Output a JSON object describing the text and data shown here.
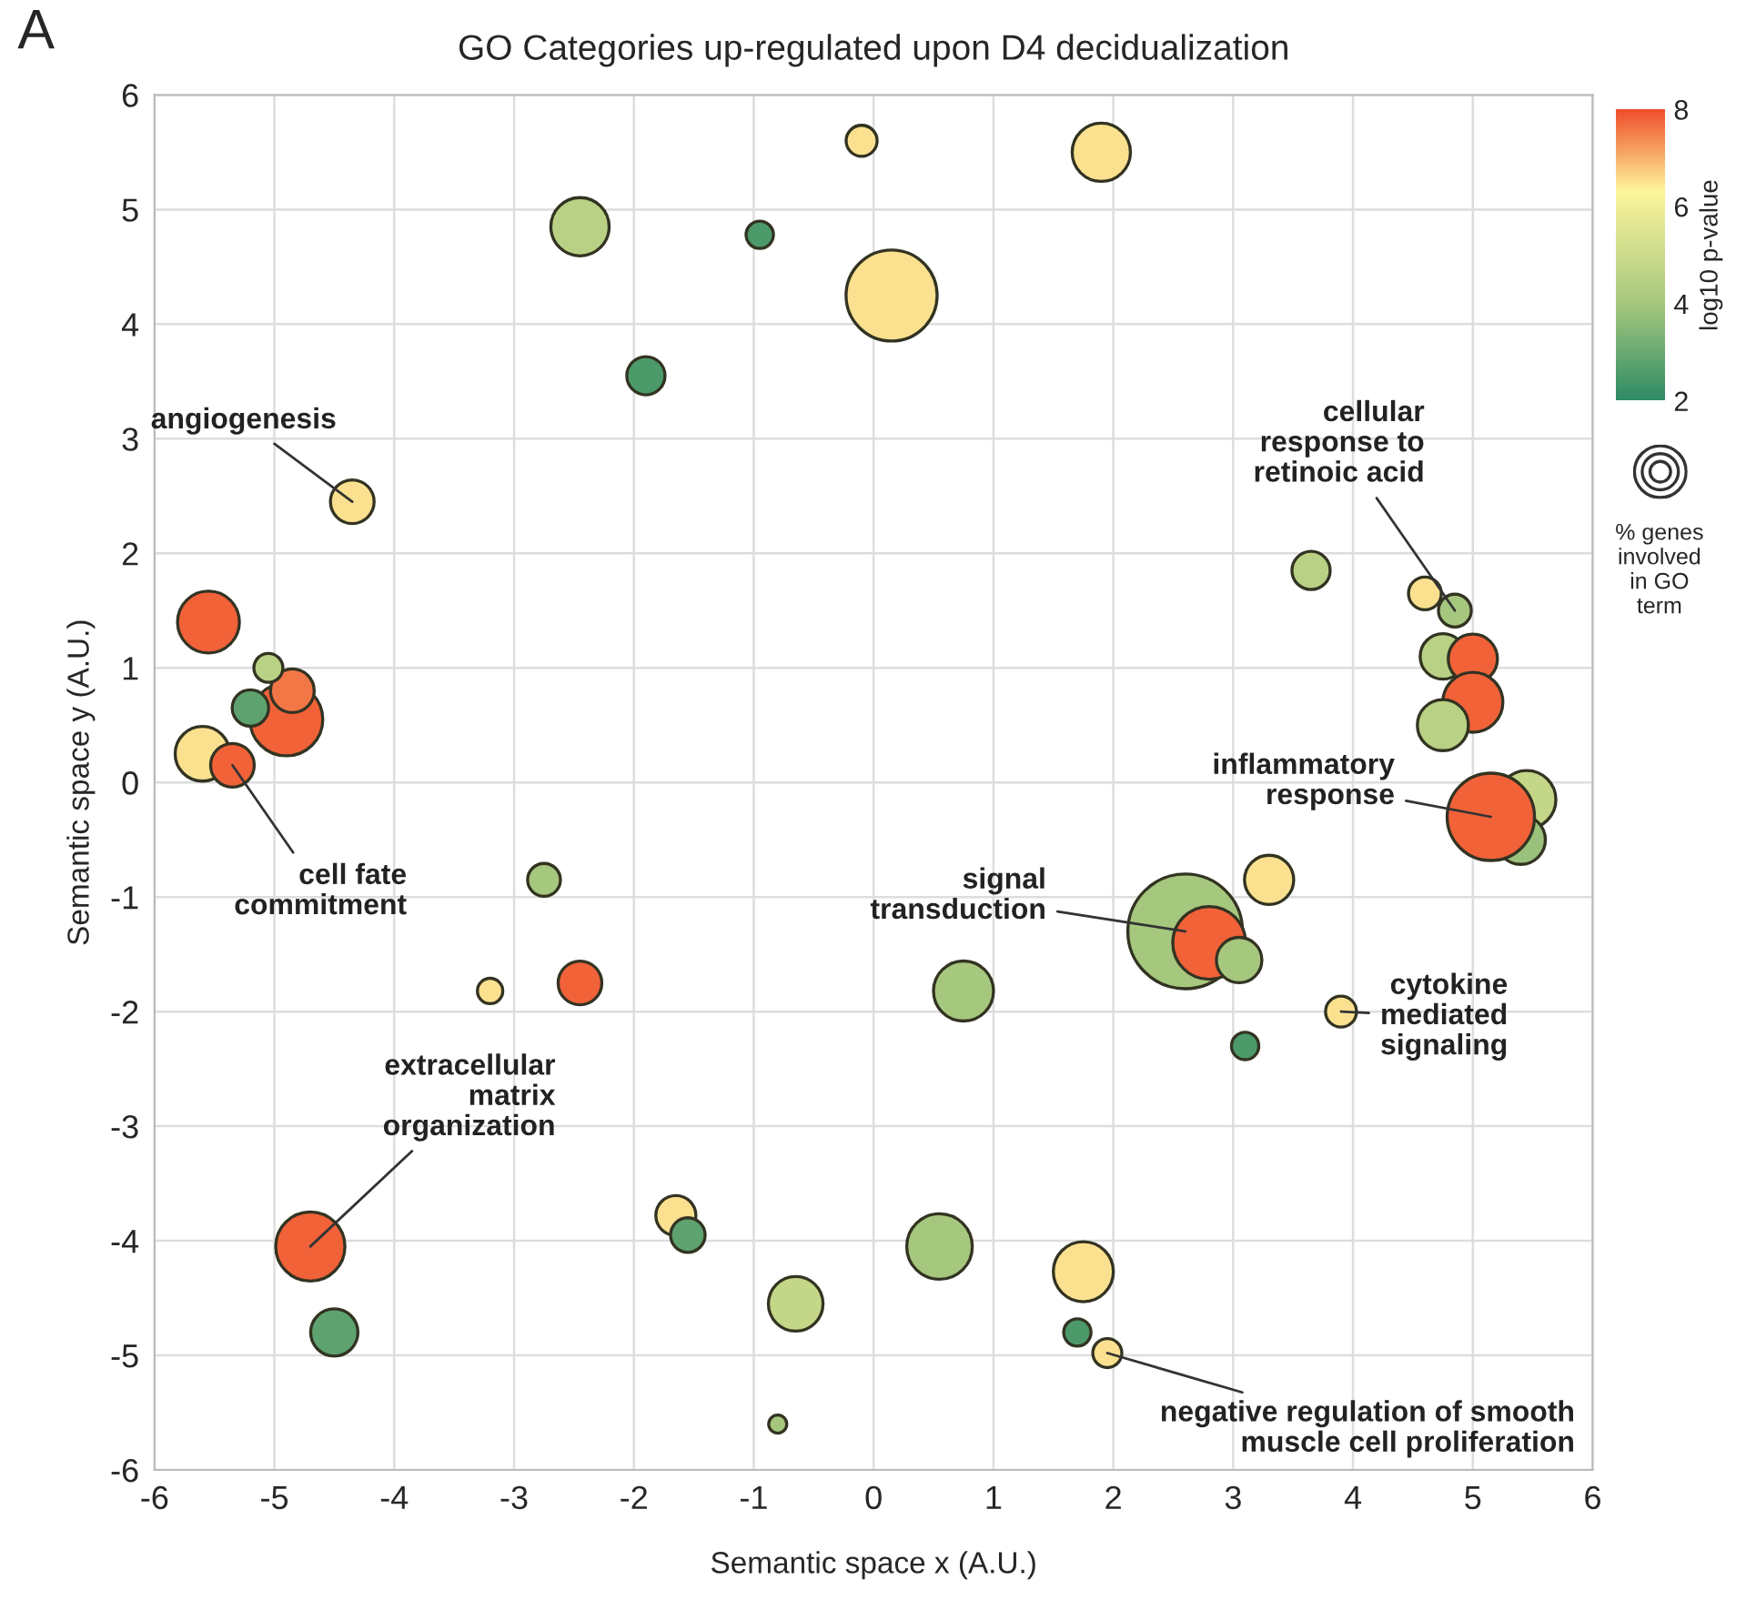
{
  "chart_data": {
    "type": "bubble",
    "title": "GO Categories up-regulated upon D4 decidualization",
    "xlabel": "Semantic space x (A.U.)",
    "ylabel": "Semantic space y (A.U.)",
    "clabel": "log10 p-value",
    "xlim": [
      -6,
      6
    ],
    "ylim": [
      -6,
      6
    ],
    "xticks": [
      -6,
      -5,
      -4,
      -3,
      -2,
      -1,
      0,
      1,
      2,
      3,
      4,
      5,
      6
    ],
    "yticks": [
      -6,
      -5,
      -4,
      -3,
      -2,
      -1,
      0,
      1,
      2,
      3,
      4,
      5,
      6
    ],
    "clim": [
      2,
      8
    ],
    "cticks": [
      2,
      4,
      6,
      8
    ],
    "grid": true,
    "marker": "circle",
    "x": [
      -0.1,
      1.9,
      -2.45,
      -0.95,
      0.15,
      -1.9,
      -4.35,
      -5.55,
      -4.9,
      -4.85,
      -5.05,
      -5.2,
      -5.6,
      -5.35,
      -2.75,
      -3.2,
      -2.45,
      -4.7,
      -4.5,
      -1.65,
      -1.55,
      -0.65,
      -0.8,
      0.75,
      0.55,
      1.75,
      1.7,
      1.95,
      2.6,
      2.8,
      3.05,
      3.3,
      3.1,
      3.9,
      3.65,
      4.6,
      4.85,
      4.75,
      5.0,
      5.0,
      4.75,
      5.45,
      5.4,
      5.15
    ],
    "values": [
      5.6,
      5.5,
      4.85,
      4.78,
      4.25,
      3.55,
      2.45,
      1.4,
      0.55,
      0.8,
      1.0,
      0.65,
      0.25,
      0.15,
      -0.85,
      -1.82,
      -1.75,
      -4.05,
      -4.8,
      -3.78,
      -3.95,
      -4.55,
      -5.6,
      -1.82,
      -4.05,
      -4.27,
      -4.8,
      -4.98,
      -1.3,
      -1.4,
      -1.55,
      -0.85,
      -2.3,
      -2.0,
      1.85,
      1.65,
      1.5,
      1.1,
      1.08,
      0.7,
      0.5,
      -0.15,
      -0.5,
      -0.3
    ],
    "sizes": [
      0.073,
      0.258,
      0.258,
      0.057,
      0.63,
      0.111,
      0.145,
      0.291,
      0.403,
      0.145,
      0.064,
      0.101,
      0.227,
      0.145,
      0.082,
      0.049,
      0.145,
      0.364,
      0.17,
      0.122,
      0.091,
      0.227,
      0.025,
      0.274,
      0.327,
      0.274,
      0.057,
      0.064,
      1,
      0.403,
      0.157,
      0.184,
      0.057,
      0.073,
      0.111,
      0.082,
      0.082,
      0.157,
      0.184,
      0.274,
      0.198,
      0.258,
      0.184,
      0.58
    ],
    "cvalues": [
      6.5,
      6.5,
      4.5,
      2.5,
      6.5,
      2.5,
      6.5,
      7.8,
      7.8,
      7.6,
      4.5,
      2.8,
      6.5,
      7.8,
      4,
      6.5,
      7.8,
      7.8,
      2.8,
      6.5,
      2.8,
      4.8,
      4,
      4,
      4,
      6.5,
      2.5,
      6.5,
      4,
      7.8,
      4,
      6.5,
      2.5,
      6.5,
      4.5,
      6.5,
      4,
      4.5,
      7.8,
      7.8,
      4.5,
      4.8,
      3.8,
      7.8
    ],
    "annotations": [
      "A",
      "% genes\ninvolved\nin GO\nterm",
      {
        "text": "angiogenesis",
        "x": -4.35,
        "y": 2.45
      },
      {
        "text": "cell fate\ncommitment",
        "x": -5.35,
        "y": 0.15
      },
      {
        "text": "extracellular\nmatrix\norganization",
        "x": -4.7,
        "y": -4.05
      },
      {
        "text": "signal\ntransduction",
        "x": 2.6,
        "y": -1.3
      },
      {
        "text": "inflammatory\nresponse",
        "x": 5.15,
        "y": -0.3
      },
      {
        "text": "cellular\nresponse to\nretinoic acid",
        "x": 4.85,
        "y": 1.5
      },
      {
        "text": "cytokine\nmediated\nsignaling",
        "x": 3.9,
        "y": -2.0
      },
      {
        "text": "negative regulation of smooth\nmuscle cell proliferation",
        "x": 1.95,
        "y": -4.98
      }
    ]
  }
}
